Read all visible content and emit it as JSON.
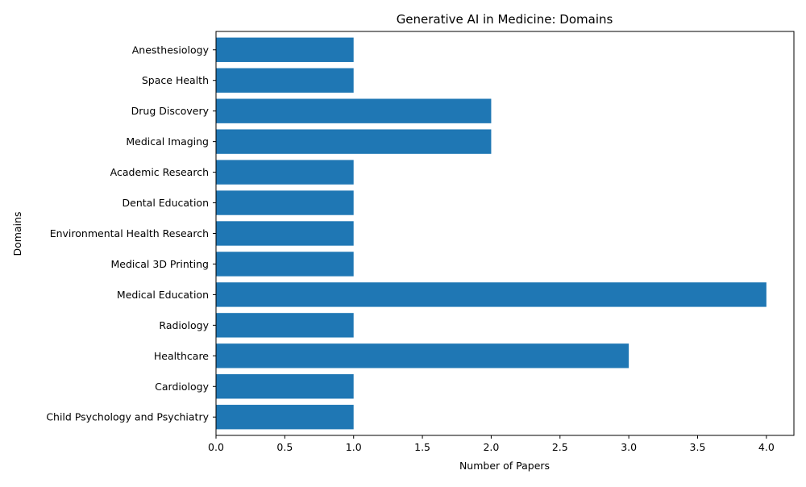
{
  "chart_data": {
    "type": "bar",
    "orientation": "horizontal",
    "title": "Generative AI in Medicine: Domains",
    "xlabel": "Number of Papers",
    "ylabel": "Domains",
    "categories": [
      "Child Psychology and Psychiatry",
      "Cardiology",
      "Healthcare",
      "Radiology",
      "Medical Education",
      "Medical 3D Printing",
      "Environmental Health Research",
      "Dental Education",
      "Academic Research",
      "Medical Imaging",
      "Drug Discovery",
      "Space Health",
      "Anesthesiology"
    ],
    "values": [
      1,
      1,
      3,
      1,
      4,
      1,
      1,
      1,
      1,
      2,
      2,
      1,
      1
    ],
    "xlim": [
      0,
      4.2
    ],
    "xticks": [
      "0.0",
      "0.5",
      "1.0",
      "1.5",
      "2.0",
      "2.5",
      "3.0",
      "3.5",
      "4.0"
    ],
    "grid": false,
    "bar_color": "#1f77b4"
  }
}
